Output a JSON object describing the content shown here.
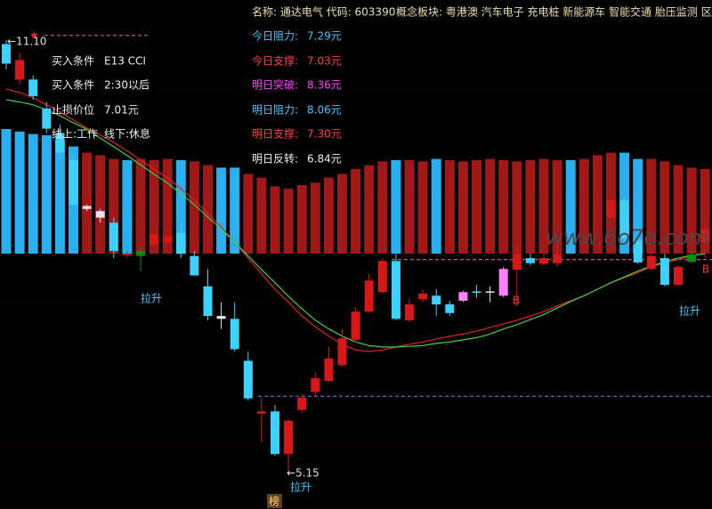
{
  "chart_data": {
    "type": "candlestick",
    "header_name": "名称: 通达电气 代码: 603390",
    "header_concept": "概念板块: 粤港澳 汽车电子 充电桩 新能源车 智能交通 胎压监测 区块",
    "ylim": [
      4.61,
      11.65
    ],
    "open": [
      11.04,
      10.55,
      10.55,
      10.15,
      9.81,
      9.44,
      8.8,
      8.73,
      8.57,
      8.12,
      8.18,
      8.27,
      8.3,
      8.43,
      8.11,
      7.69,
      7.28,
      7.24,
      6.66,
      5.93,
      5.96,
      5.37,
      5.98,
      6.23,
      6.38,
      6.6,
      6.95,
      7.34,
      7.61,
      8.04,
      7.22,
      7.51,
      7.56,
      7.44,
      7.49,
      7.62,
      7.61,
      7.56,
      7.92,
      8.08,
      8.0,
      8.01,
      null,
      null,
      null,
      8.64,
      8.88,
      8.33,
      7.93,
      8.08,
      7.71,
      8.03,
      8.3
    ],
    "high": [
      11.1,
      10.92,
      10.61,
      10.24,
      9.93,
      9.5,
      8.82,
      8.76,
      8.64,
      8.18,
      8.25,
      8.43,
      8.38,
      8.57,
      8.18,
      7.93,
      7.47,
      7.47,
      6.79,
      6.15,
      6.05,
      5.86,
      6.2,
      6.5,
      6.85,
      7.1,
      7.4,
      7.86,
      8.08,
      8.14,
      7.53,
      7.65,
      7.65,
      7.49,
      7.63,
      7.71,
      7.69,
      7.96,
      8.27,
      8.14,
      8.14,
      8.27,
      null,
      null,
      null,
      8.9,
      8.92,
      8.4,
      8.21,
      8.14,
      7.98,
      8.2,
      8.57
    ],
    "low": [
      10.69,
      10.48,
      10.27,
      9.81,
      9.46,
      8.8,
      8.73,
      8.57,
      8.08,
      8.08,
      7.9,
      8.25,
      8.27,
      8.08,
      7.84,
      7.22,
      7.1,
      6.79,
      6.11,
      5.53,
      5.35,
      5.15,
      5.93,
      6.17,
      6.36,
      6.58,
      6.91,
      7.32,
      7.59,
      7.22,
      7.19,
      7.47,
      7.28,
      7.28,
      7.47,
      7.53,
      7.47,
      7.54,
      7.41,
      7.98,
      7.98,
      7.96,
      null,
      null,
      null,
      8.62,
      8.31,
      8.0,
      7.9,
      7.69,
      7.69,
      8.01,
      8.08
    ],
    "close": [
      10.77,
      10.82,
      10.32,
      9.87,
      9.54,
      8.82,
      8.76,
      8.64,
      8.18,
      8.14,
      8.11,
      8.41,
      8.38,
      8.14,
      7.84,
      7.28,
      7.24,
      6.82,
      6.14,
      5.96,
      5.37,
      5.83,
      6.15,
      6.42,
      6.69,
      6.97,
      7.34,
      7.77,
      8.04,
      7.24,
      7.44,
      7.59,
      7.44,
      7.32,
      7.61,
      7.6,
      7.62,
      7.93,
      8.14,
      8.01,
      8.08,
      8.14,
      null,
      null,
      null,
      8.88,
      8.35,
      8.02,
      8.11,
      7.71,
      7.96,
      8.13,
      8.48
    ],
    "candle_colors": [
      "#3cd2ff",
      "#d81818",
      "#3cd2ff",
      "#3cd2ff",
      "#3cd2ff",
      "#3cd2ff",
      "#e6e6e6",
      "#e6e6e6",
      "#3cd2ff",
      "#d81818",
      "#0c8c0c",
      "#d81818",
      "#d81818",
      "#3cd2ff",
      "#3cd2ff",
      "#3cd2ff",
      "#e6e6e6",
      "#3cd2ff",
      "#3cd2ff",
      "#d81818",
      "#3cd2ff",
      "#d81818",
      "#d81818",
      "#d81818",
      "#d81818",
      "#d81818",
      "#d81818",
      "#d81818",
      "#d81818",
      "#3cd2ff",
      "#d81818",
      "#d81818",
      "#3cd2ff",
      "#3cd2ff",
      "#ff80ff",
      "#3cd2ff",
      "#e6e6e6",
      "#ff80ff",
      "#d81818",
      "#3cd2ff",
      "#d81818",
      "#d81818",
      null,
      null,
      null,
      "#d81818",
      "#3cd2ff",
      "#3cd2ff",
      "#d81818",
      "#3cd2ff",
      "#d81818",
      "#0c8c0c",
      "#d81818"
    ],
    "series": [
      {
        "color": "#e02020",
        "values": [
          10.42,
          10.37,
          10.3,
          10.2,
          10.1,
          9.99,
          9.88,
          9.78,
          9.68,
          9.56,
          9.44,
          9.31,
          9.19,
          9.04,
          8.88,
          8.7,
          8.51,
          8.3,
          8.08,
          7.86,
          7.65,
          7.47,
          7.28,
          7.13,
          7.0,
          6.89,
          6.81,
          6.79,
          6.81,
          6.85,
          6.89,
          6.92,
          6.96,
          7.0,
          7.03,
          7.07,
          7.12,
          7.17,
          7.22,
          7.28,
          7.34,
          7.42,
          7.49,
          7.56,
          7.65,
          7.74,
          7.81,
          7.88,
          7.96,
          8.01,
          8.06,
          8.11,
          8.14
        ]
      },
      {
        "color": "#40d040",
        "values": [
          10.27,
          10.24,
          10.2,
          10.13,
          10.05,
          9.95,
          9.86,
          9.74,
          9.62,
          9.5,
          9.37,
          9.24,
          9.12,
          8.97,
          8.82,
          8.65,
          8.48,
          8.3,
          8.11,
          7.92,
          7.74,
          7.55,
          7.38,
          7.22,
          7.1,
          7.0,
          6.92,
          6.87,
          6.85,
          6.85,
          6.86,
          6.87,
          6.9,
          6.92,
          6.95,
          6.98,
          7.03,
          7.1,
          7.16,
          7.23,
          7.3,
          7.39,
          7.48,
          7.56,
          7.65,
          7.74,
          7.82,
          7.9,
          7.97,
          8.03,
          8.08,
          8.12,
          8.14
        ]
      }
    ],
    "y2lim": [
      0,
      100
    ],
    "indicator": {
      "values": [
        100,
        98,
        96,
        95,
        91,
        86,
        81,
        79,
        76,
        75,
        76,
        75,
        76,
        75,
        74,
        71,
        69,
        69,
        64,
        61,
        54,
        52,
        55,
        57,
        61,
        64,
        68,
        71,
        74,
        75,
        75,
        74,
        76,
        75,
        74,
        75,
        76,
        75,
        74,
        75,
        76,
        75,
        75,
        76,
        79,
        81,
        81,
        76,
        76,
        74,
        71,
        69,
        68
      ],
      "colors": [
        "#2ab0f0",
        "#2ab0f0",
        "#2ab0f0",
        "#2ab0f0",
        "#2ab0f0",
        "#2ab0f0",
        "#a01818",
        "#a01818",
        "#a01818",
        "#2ab0f0",
        "#a01818",
        "#a01818",
        "#a01818",
        "#2ab0f0",
        "#a01818",
        "#a01818",
        "#2ab0f0",
        "#2ab0f0",
        "#a01818",
        "#a01818",
        "#a01818",
        "#a01818",
        "#a01818",
        "#a01818",
        "#a01818",
        "#a01818",
        "#a01818",
        "#a01818",
        "#a01818",
        "#2ab0f0",
        "#a01818",
        "#a01818",
        "#2ab0f0",
        "#a01818",
        "#a01818",
        "#a01818",
        "#a01818",
        "#a01818",
        "#a01818",
        "#a01818",
        "#a01818",
        "#a01818",
        "#2ab0f0",
        "#a01818",
        "#a01818",
        "#a01818",
        "#2ab0f0",
        "#2ab0f0",
        "#a01818",
        "#a01818",
        "#a01818",
        "#a01818",
        "#a01818"
      ]
    },
    "ref_lines": [
      {
        "value": 11.16,
        "color": "#ff60c0"
      },
      {
        "value": 8.06,
        "color": "#ff60c0"
      },
      {
        "value": 6.17,
        "color": "#6a7cff"
      }
    ],
    "levels": [
      {
        "label": "今日阻力:",
        "value": "7.29元",
        "color": "#40c8ff"
      },
      {
        "label": "今日支撑:",
        "value": "7.03元",
        "color": "#ff4040"
      },
      {
        "label": "明日突破:",
        "value": "8.36元",
        "color": "#ff40ff"
      },
      {
        "label": "明日阻力:",
        "value": "8.06元",
        "color": "#40c8ff"
      },
      {
        "label": "明日支撑:",
        "value": "7.30元",
        "color": "#ff4040"
      },
      {
        "label": "明日反转:",
        "value": "6.84元",
        "color": "#f0f0f0"
      }
    ],
    "conditions": [
      [
        "买入条件",
        "E13 CCI"
      ],
      [
        "买入条件",
        "2:30以后"
      ],
      [
        "止损价位",
        "7.01元"
      ],
      [
        "线上:工作",
        "线下:休息"
      ]
    ],
    "high_label": "←11.10",
    "low_label": "←5.15",
    "annotations": [
      {
        "text": "拉升",
        "color": "#40c8ff"
      },
      {
        "text": "拉升",
        "color": "#40c8ff"
      },
      {
        "text": "拉升",
        "color": "#40c8ff"
      },
      {
        "text": "B",
        "color": "#ff3030"
      },
      {
        "text": "B",
        "color": "#ff3030"
      }
    ],
    "watermark": "www.6o7o.com",
    "badge": "榜"
  }
}
